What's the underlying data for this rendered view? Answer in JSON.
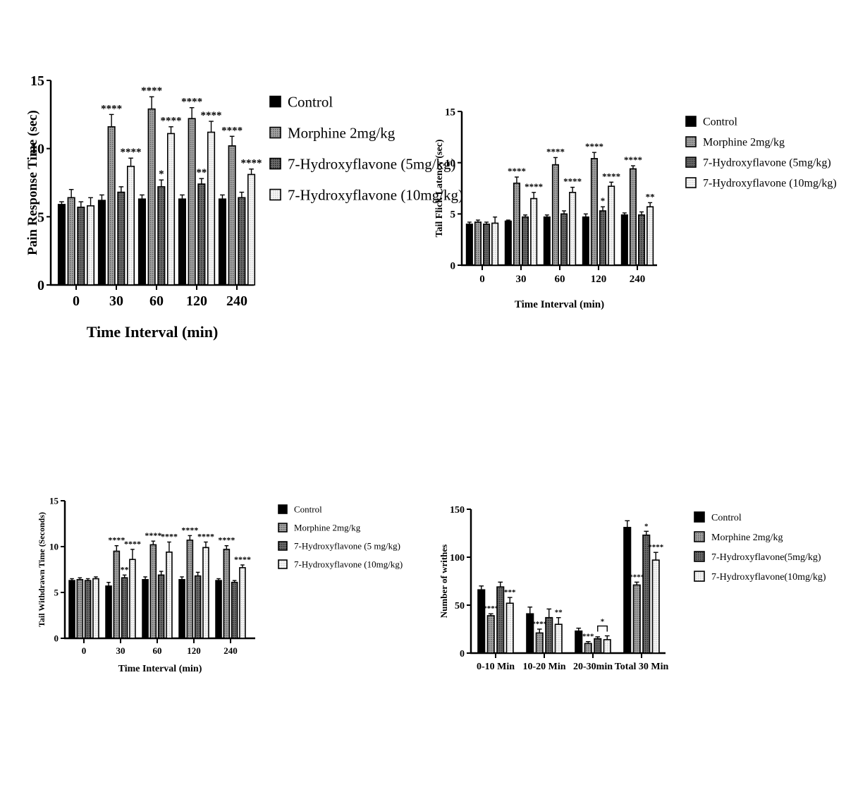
{
  "series_style": [
    {
      "fill": "#000000",
      "pattern": "solid"
    },
    {
      "fill": "#8c8c8c",
      "pattern": "grey"
    },
    {
      "fill": "#5a5a5a",
      "pattern": "dark"
    },
    {
      "fill": "#f4f4f4",
      "pattern": "white"
    }
  ],
  "chart_data": [
    {
      "type": "bar",
      "xlabel": "Time Interval (min)",
      "ylabel": "Pain Response Time (sec)",
      "ylim": [
        0,
        15
      ],
      "yticks": [
        "0",
        "5",
        "10",
        "15"
      ],
      "categories": [
        "0",
        "30",
        "60",
        "120",
        "240"
      ],
      "legend_position": "right",
      "series": [
        {
          "name": "Control",
          "values": [
            5.9,
            6.2,
            6.3,
            6.3,
            6.3
          ],
          "errors": [
            0.2,
            0.4,
            0.3,
            0.3,
            0.3
          ],
          "marks": [
            "",
            "",
            "",
            "",
            ""
          ]
        },
        {
          "name": "Morphine 2mg/kg",
          "values": [
            6.4,
            11.6,
            12.9,
            12.2,
            10.2
          ],
          "errors": [
            0.6,
            0.9,
            0.9,
            0.8,
            0.7
          ],
          "marks": [
            "",
            "****",
            "****",
            "****",
            "****"
          ]
        },
        {
          "name": "7-Hydroxyflavone (5mg/kg)",
          "values": [
            5.7,
            6.8,
            7.2,
            7.4,
            6.4
          ],
          "errors": [
            0.4,
            0.4,
            0.5,
            0.4,
            0.4
          ],
          "marks": [
            "",
            "",
            "*",
            "**",
            ""
          ]
        },
        {
          "name": "7-Hydroxyflavone (10mg/kg)",
          "values": [
            5.8,
            8.7,
            11.1,
            11.2,
            8.1
          ],
          "errors": [
            0.6,
            0.6,
            0.5,
            0.8,
            0.4
          ],
          "marks": [
            "",
            "****",
            "****",
            "****",
            "****"
          ]
        }
      ]
    },
    {
      "type": "bar",
      "xlabel": "Time Interval (min)",
      "ylabel": "Tail Flick Latency (sec)",
      "ylim": [
        0,
        15
      ],
      "yticks": [
        "0",
        "5",
        "10",
        "15"
      ],
      "categories": [
        "0",
        "30",
        "60",
        "120",
        "240"
      ],
      "legend_position": "right",
      "series": [
        {
          "name": "Control",
          "values": [
            4.0,
            4.3,
            4.7,
            4.7,
            4.9
          ],
          "errors": [
            0.2,
            0.1,
            0.2,
            0.3,
            0.2
          ],
          "marks": [
            "",
            "",
            "",
            "",
            ""
          ]
        },
        {
          "name": "Morphine 2mg/kg",
          "values": [
            4.2,
            8.0,
            9.8,
            10.4,
            9.4
          ],
          "errors": [
            0.2,
            0.6,
            0.7,
            0.6,
            0.3
          ],
          "marks": [
            "",
            "****",
            "****",
            "****",
            "****"
          ]
        },
        {
          "name": "7-Hydroxyflavone (5mg/kg)",
          "values": [
            4.0,
            4.7,
            5.0,
            5.3,
            4.9
          ],
          "errors": [
            0.2,
            0.2,
            0.3,
            0.4,
            0.3
          ],
          "marks": [
            "",
            "",
            "",
            "*",
            ""
          ]
        },
        {
          "name": "7-Hydroxyflavone (10mg/kg)",
          "values": [
            4.1,
            6.5,
            7.1,
            7.7,
            5.7
          ],
          "errors": [
            0.6,
            0.6,
            0.5,
            0.4,
            0.4
          ],
          "marks": [
            "",
            "****",
            "****",
            "****",
            "**"
          ]
        }
      ]
    },
    {
      "type": "bar",
      "xlabel": "Time Interval (min)",
      "ylabel": "Tail Withdrawn Time (Seconds)",
      "ylim": [
        0,
        15
      ],
      "yticks": [
        "0",
        "5",
        "10",
        "15"
      ],
      "categories": [
        "0",
        "30",
        "60",
        "120",
        "240"
      ],
      "legend_position": "right",
      "series": [
        {
          "name": "Control",
          "values": [
            6.3,
            5.7,
            6.4,
            6.4,
            6.3
          ],
          "errors": [
            0.2,
            0.4,
            0.3,
            0.3,
            0.2
          ],
          "marks": [
            "",
            "",
            "",
            "",
            ""
          ]
        },
        {
          "name": "Morphine 2mg/kg",
          "values": [
            6.4,
            9.5,
            10.2,
            10.7,
            9.7
          ],
          "errors": [
            0.2,
            0.6,
            0.4,
            0.5,
            0.4
          ],
          "marks": [
            "",
            "****",
            "****",
            "****",
            "****"
          ]
        },
        {
          "name": "7-Hydroxyflavone (5 mg/kg)",
          "values": [
            6.3,
            6.6,
            6.9,
            6.8,
            6.1
          ],
          "errors": [
            0.2,
            0.3,
            0.4,
            0.4,
            0.2
          ],
          "marks": [
            "",
            "**",
            "",
            "",
            ""
          ]
        },
        {
          "name": "7-Hydroxyflavone (10mg/kg)",
          "values": [
            6.5,
            8.6,
            9.4,
            9.9,
            7.7
          ],
          "errors": [
            0.2,
            1.1,
            1.1,
            0.6,
            0.3
          ],
          "marks": [
            "",
            "****",
            "****",
            "****",
            "****"
          ]
        }
      ]
    },
    {
      "type": "bar",
      "xlabel": "",
      "ylabel": "Number of writhes",
      "ylim": [
        0,
        150
      ],
      "yticks": [
        "0",
        "50",
        "100",
        "150"
      ],
      "categories": [
        "0-10 Min",
        "10-20 Min",
        "20-30min",
        "Total 30 Min"
      ],
      "legend_position": "right",
      "bracket": {
        "from_series": 2,
        "to_series": 3,
        "category": 2,
        "label": "*"
      },
      "series": [
        {
          "name": "Control",
          "values": [
            66,
            41,
            23,
            131
          ],
          "errors": [
            4,
            7,
            3,
            7
          ],
          "marks": [
            "",
            "",
            "",
            ""
          ]
        },
        {
          "name": "Morphine 2mg/kg",
          "values": [
            39,
            21,
            10,
            71
          ],
          "errors": [
            2,
            4,
            2,
            3
          ],
          "marks": [
            "****",
            "****",
            "***",
            "****"
          ]
        },
        {
          "name": "7-Hydroxyflavone(5mg/kg)",
          "values": [
            69,
            37,
            15,
            123
          ],
          "errors": [
            5,
            9,
            2,
            4
          ],
          "marks": [
            "",
            "",
            "",
            "*"
          ]
        },
        {
          "name": "7-Hydroxyflavone(10mg/kg)",
          "values": [
            52,
            30,
            14,
            97
          ],
          "errors": [
            6,
            7,
            4,
            8
          ],
          "marks": [
            "***",
            "**",
            "",
            "****"
          ]
        }
      ]
    }
  ]
}
